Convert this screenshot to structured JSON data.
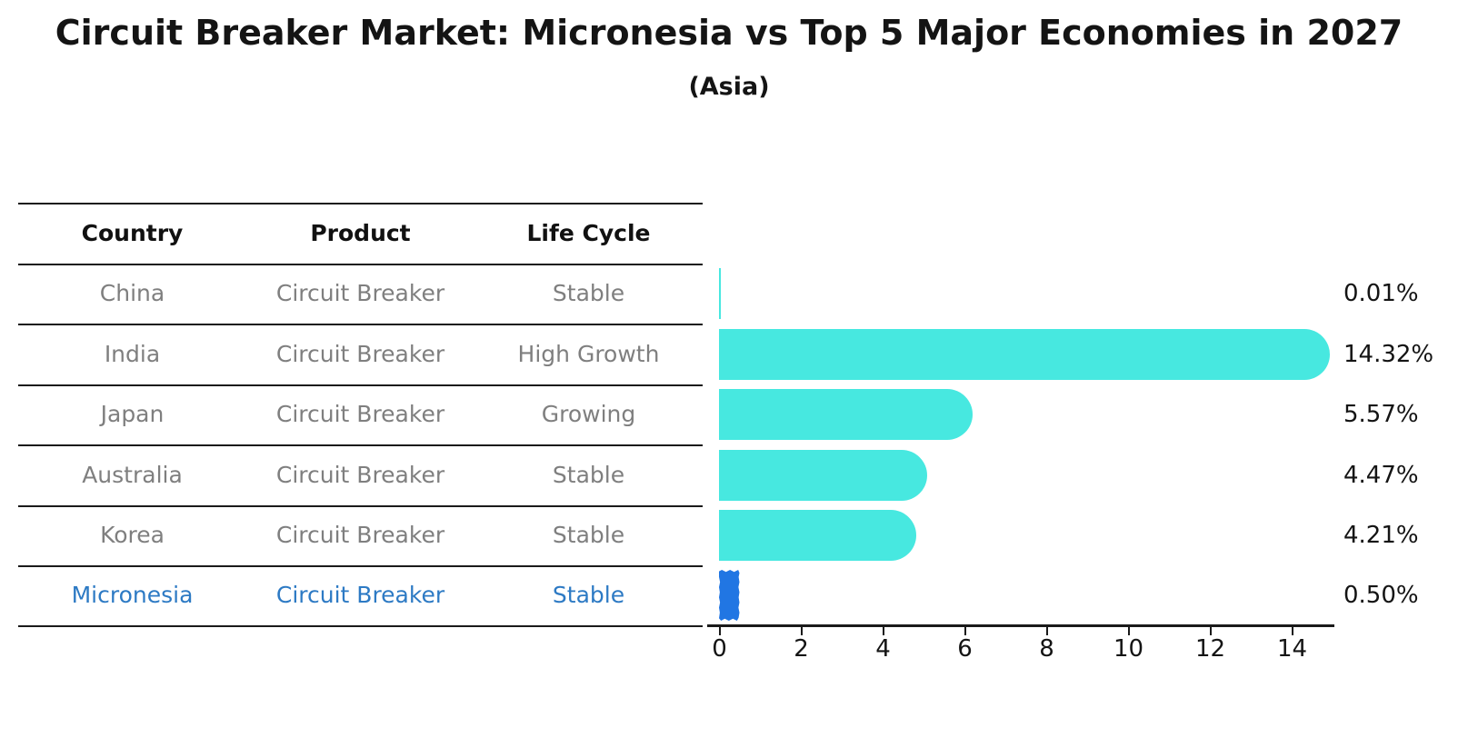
{
  "title": "Circuit Breaker Market: Micronesia vs Top 5 Major Economies in 2027",
  "subtitle": "(Asia)",
  "table": {
    "headers": [
      "Country",
      "Product",
      "Life Cycle"
    ],
    "rows": [
      {
        "country": "China",
        "product": "Circuit Breaker",
        "life_cycle": "Stable",
        "highlight": false
      },
      {
        "country": "India",
        "product": "Circuit Breaker",
        "life_cycle": "High Growth",
        "highlight": false
      },
      {
        "country": "Japan",
        "product": "Circuit Breaker",
        "life_cycle": "Growing",
        "highlight": false
      },
      {
        "country": "Australia",
        "product": "Circuit Breaker",
        "life_cycle": "Stable",
        "highlight": false
      },
      {
        "country": "Korea",
        "product": "Circuit Breaker",
        "life_cycle": "Stable",
        "highlight": false
      },
      {
        "country": "Micronesia",
        "product": "Circuit Breaker",
        "life_cycle": "Stable",
        "highlight": true
      }
    ]
  },
  "chart_data": {
    "type": "bar",
    "orientation": "horizontal",
    "title": "Circuit Breaker Market: Micronesia vs Top 5 Major Economies in 2027",
    "subtitle": "(Asia)",
    "categories": [
      "China",
      "India",
      "Japan",
      "Australia",
      "Korea",
      "Micronesia"
    ],
    "values": [
      0.01,
      14.32,
      5.57,
      4.47,
      4.21,
      0.5
    ],
    "value_labels": [
      "0.01%",
      "14.32%",
      "5.57%",
      "4.47%",
      "4.21%",
      "0.50%"
    ],
    "x_ticks": [
      "0",
      "2",
      "4",
      "6",
      "8",
      "10",
      "12",
      "14"
    ],
    "xlim": [
      0,
      15.1
    ],
    "xlabel": "",
    "ylabel": "",
    "grid": false,
    "legend": false,
    "highlight_index": 5
  },
  "colors": {
    "bar": "#47E8E0",
    "highlight_bar": "#2176E3",
    "highlight_text": "#2D7AC4",
    "row_text": "#7F7F7F",
    "header_text": "#111111",
    "axis": "#1A1A1A",
    "value_text": "#141414"
  }
}
